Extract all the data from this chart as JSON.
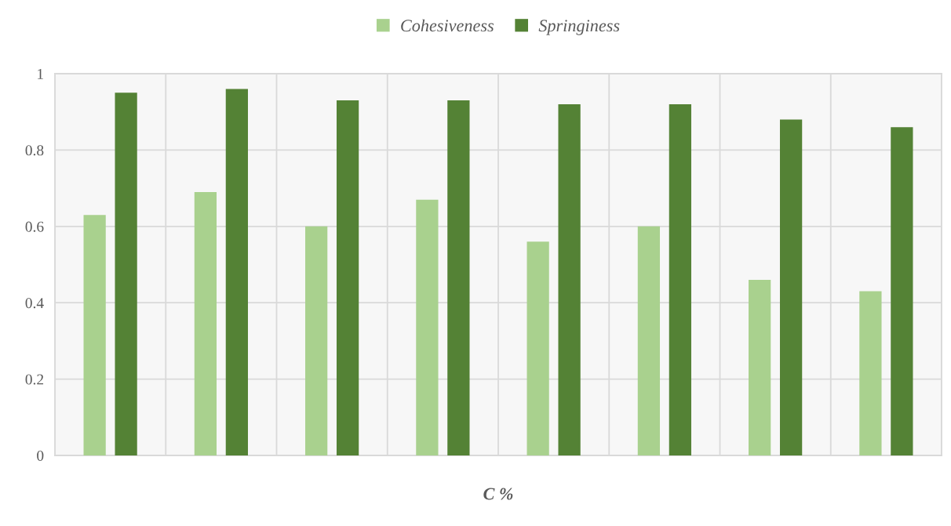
{
  "chart_data": {
    "type": "bar",
    "xlabel": "C %",
    "categories": [
      null,
      null,
      null,
      null,
      null,
      null,
      null,
      null
    ],
    "series": [
      {
        "name": "Cohesiveness",
        "color": "#a9d18e",
        "values": [
          0.63,
          0.69,
          0.6,
          0.67,
          0.56,
          0.6,
          0.46,
          0.43
        ]
      },
      {
        "name": "Springiness",
        "color": "#548235",
        "values": [
          0.95,
          0.96,
          0.93,
          0.93,
          0.92,
          0.92,
          0.88,
          0.86
        ]
      }
    ],
    "ylim": [
      0,
      1
    ],
    "yticks": [
      0,
      0.2,
      0.4,
      0.6,
      0.8,
      1
    ],
    "grid": true,
    "legend": "top",
    "tick_labels": "y"
  }
}
